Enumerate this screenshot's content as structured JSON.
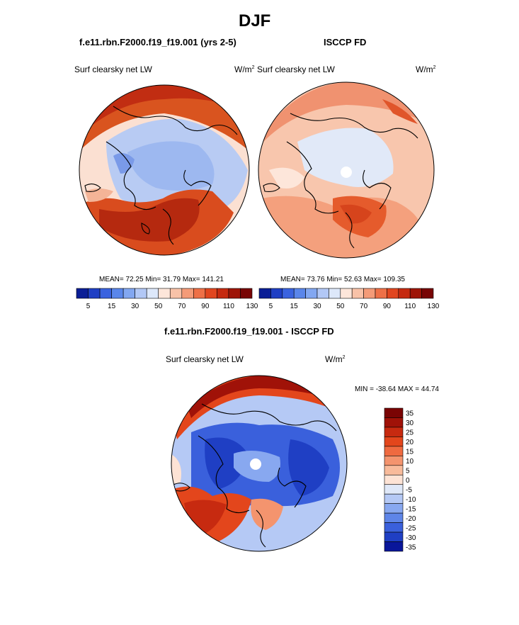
{
  "page": {
    "title": "DJF",
    "diff_title": "f.e11.rbn.F2000.f19_f19.001 - ISCCP FD"
  },
  "panels": [
    {
      "title": "f.e11.rbn.F2000.f19_f19.001 (yrs 2-5)",
      "field": "Surf clearsky net LW",
      "units_base": "W/m",
      "units_exp": "2",
      "stats": "MEAN=  72.25  Min=  31.79  Max= 141.21"
    },
    {
      "title": "ISCCP FD",
      "field": "Surf clearsky net LW",
      "units_base": "W/m",
      "units_exp": "2",
      "stats": "MEAN=  73.76  Min=  52.63  Max= 109.35"
    },
    {
      "field": "Surf clearsky net LW",
      "units_base": "W/m",
      "units_exp": "2",
      "stats": "MIN = -38.64 MAX =  44.74"
    }
  ],
  "colorbar_abs": {
    "colors": [
      "#0a1e96",
      "#1f3fc4",
      "#3a63df",
      "#5a86ea",
      "#82a7f1",
      "#b2c8f6",
      "#dde8fa",
      "#fde6da",
      "#f8c2a8",
      "#f49b78",
      "#ee7047",
      "#e1461f",
      "#c52a10",
      "#9e1508",
      "#780505"
    ],
    "tick_labels": [
      "5",
      "15",
      "30",
      "50",
      "70",
      "90",
      "110",
      "130"
    ]
  },
  "colorbar_diff": {
    "colors": [
      "#7a0404",
      "#a01208",
      "#c72a10",
      "#e3461c",
      "#ef6a40",
      "#f4946e",
      "#f8bb9b",
      "#fde3d5",
      "#dfe8f8",
      "#b5c9f5",
      "#88a8f0",
      "#5e85e8",
      "#3a60dc",
      "#1f3fc4",
      "#09169a"
    ],
    "tick_labels": [
      "35",
      "30",
      "25",
      "20",
      "15",
      "10",
      "5",
      "0",
      "-5",
      "-10",
      "-15",
      "-20",
      "-25",
      "-30",
      "-35"
    ]
  }
}
